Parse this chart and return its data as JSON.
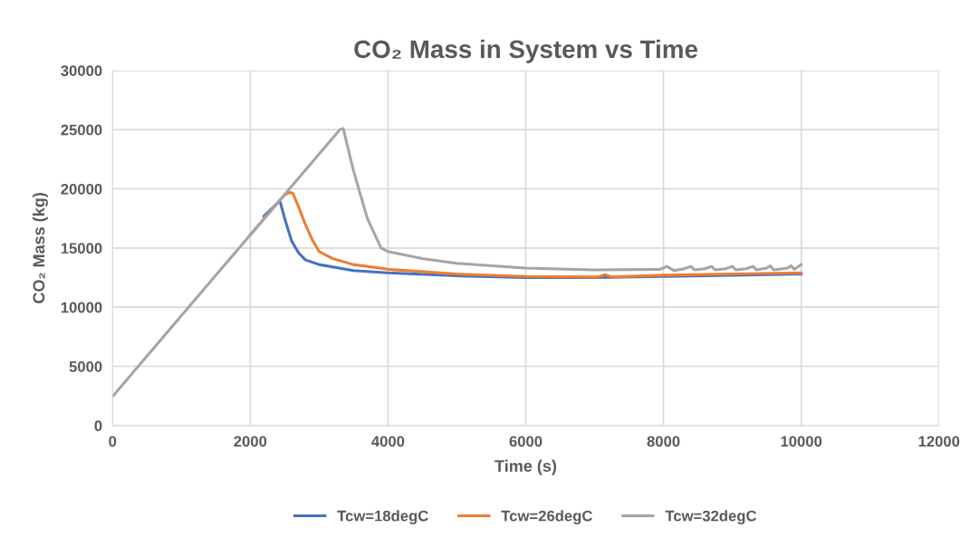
{
  "chart_data": {
    "type": "line",
    "title": "CO₂ Mass in System vs Time",
    "xlabel": "Time (s)",
    "ylabel": "CO₂ Mass (kg)",
    "xlim": [
      0,
      12000
    ],
    "xticks": [
      0,
      2000,
      4000,
      6000,
      8000,
      10000,
      12000
    ],
    "ylim": [
      0,
      30000
    ],
    "yticks": [
      0,
      5000,
      10000,
      15000,
      20000,
      25000,
      30000
    ],
    "grid": true,
    "legend": "bottom",
    "marker": "none",
    "line_style": "solid",
    "series": [
      {
        "name": "Tcw=18degC",
        "color": "#4472c4",
        "x": [
          2200,
          2430,
          2500,
          2600,
          2700,
          2800,
          3000,
          3500,
          4000,
          5000,
          6000,
          7000,
          8000,
          9000,
          10000
        ],
        "values": [
          17700,
          19000,
          17500,
          15600,
          14600,
          14000,
          13600,
          13100,
          12900,
          12650,
          12500,
          12500,
          12600,
          12700,
          12800
        ]
      },
      {
        "name": "Tcw=26degC",
        "color": "#ed7d31",
        "x": [
          2000,
          2500,
          2580,
          2620,
          2700,
          2800,
          2900,
          3000,
          3200,
          3500,
          4000,
          5000,
          6000,
          7050,
          7150,
          7250,
          8000,
          9000,
          10000
        ],
        "values": [
          16110,
          19500,
          19700,
          19600,
          18500,
          17000,
          15700,
          14700,
          14100,
          13600,
          13200,
          12800,
          12600,
          12550,
          12750,
          12550,
          12700,
          12800,
          12900
        ]
      },
      {
        "name": "Tcw=32degC",
        "color": "#a5a5a5",
        "x": [
          0,
          1000,
          2000,
          3000,
          3300,
          3350,
          3500,
          3700,
          3900,
          4000,
          4500,
          5000,
          6000,
          7000,
          7950,
          8050,
          8150,
          8300,
          8400,
          8450,
          8600,
          8700,
          8750,
          8900,
          9000,
          9050,
          9200,
          9300,
          9350,
          9500,
          9550,
          9600,
          9800,
          9850,
          9900,
          10000
        ],
        "values": [
          2450,
          9280,
          16110,
          22950,
          25000,
          25100,
          21500,
          17500,
          15000,
          14700,
          14100,
          13700,
          13300,
          13150,
          13200,
          13450,
          13100,
          13250,
          13450,
          13150,
          13250,
          13450,
          13150,
          13250,
          13450,
          13150,
          13250,
          13450,
          13150,
          13300,
          13500,
          13150,
          13300,
          13500,
          13200,
          13600
        ]
      }
    ]
  }
}
